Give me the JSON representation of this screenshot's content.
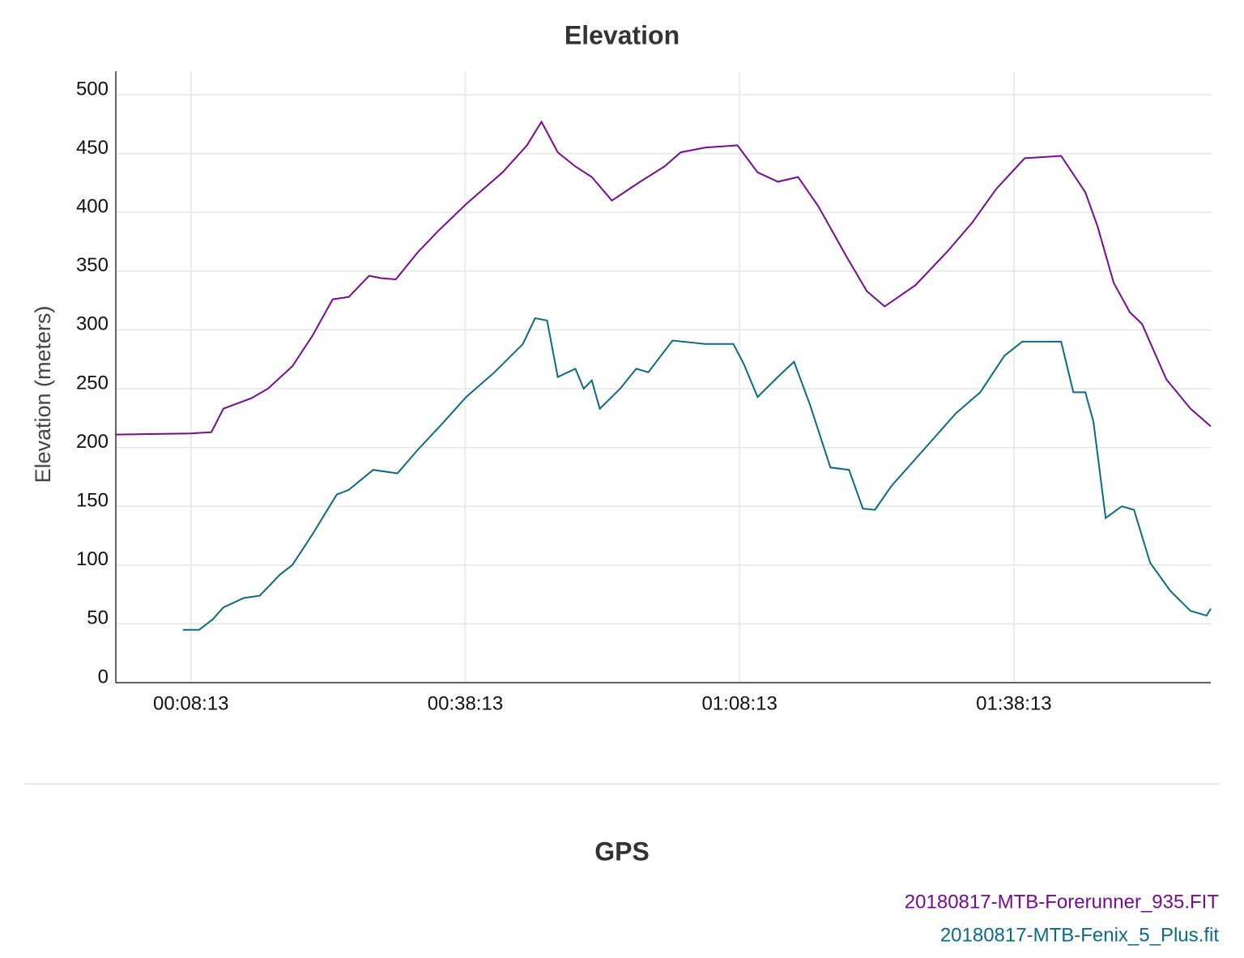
{
  "chart_data": {
    "type": "line",
    "title": "Elevation",
    "y_label": "Elevation (meters)",
    "legend_title": "GPS",
    "legend": "bottom-right",
    "grid": true,
    "xlim": [
      0,
      7185
    ],
    "ylim": [
      0,
      520
    ],
    "xticks": [
      {
        "value": 493,
        "label": "00:08:13"
      },
      {
        "value": 2293,
        "label": "00:38:13"
      },
      {
        "value": 4093,
        "label": "01:08:13"
      },
      {
        "value": 5893,
        "label": "01:38:13"
      }
    ],
    "yticks": [
      0,
      50,
      100,
      150,
      200,
      250,
      300,
      350,
      400,
      450,
      500
    ],
    "series": [
      {
        "name": "20180817-MTB-Forerunner_935.FIT",
        "color": "#770b94",
        "x": [
          0,
          494,
          627,
          706,
          892,
          998,
          1158,
          1290,
          1423,
          1529,
          1662,
          1742,
          1837,
          1981,
          2114,
          2299,
          2538,
          2698,
          2793,
          2900,
          3016,
          3123,
          3255,
          3441,
          3600,
          3707,
          3866,
          4079,
          4211,
          4344,
          4477,
          4610,
          4796,
          4928,
          5045,
          5247,
          5459,
          5618,
          5778,
          5964,
          6203,
          6362,
          6442,
          6548,
          6654,
          6734,
          6893,
          7052,
          7185
        ],
        "values": [
          211,
          212,
          213,
          233,
          242,
          250,
          269,
          295,
          326,
          328,
          346,
          344,
          343,
          366,
          384,
          407,
          434,
          457,
          477,
          451,
          439,
          430,
          410,
          426,
          439,
          451,
          455,
          457,
          434,
          426,
          430,
          405,
          362,
          333,
          320,
          338,
          367,
          391,
          420,
          446,
          448,
          417,
          388,
          340,
          315,
          305,
          258,
          233,
          218
        ]
      },
      {
        "name": "20180817-MTB-Fenix_5_Plus.fit",
        "color": "#0b6b87",
        "x": [
          441,
          547,
          637,
          706,
          839,
          945,
          1078,
          1158,
          1290,
          1450,
          1529,
          1689,
          1848,
          1981,
          2140,
          2299,
          2485,
          2671,
          2751,
          2830,
          2900,
          3016,
          3070,
          3123,
          3176,
          3309,
          3415,
          3494,
          3653,
          3866,
          4052,
          4121,
          4211,
          4344,
          4450,
          4556,
          4689,
          4811,
          4902,
          4981,
          5088,
          5300,
          5512,
          5672,
          5831,
          5948,
          6203,
          6283,
          6362,
          6415,
          6495,
          6601,
          6681,
          6787,
          6920,
          7052,
          7158,
          7185
        ],
        "values": [
          45,
          45,
          54,
          64,
          72,
          74,
          92,
          100,
          126,
          160,
          164,
          181,
          178,
          198,
          220,
          243,
          264,
          288,
          310,
          308,
          260,
          267,
          250,
          257,
          233,
          250,
          267,
          264,
          291,
          288,
          288,
          271,
          243,
          260,
          273,
          236,
          183,
          181,
          148,
          147,
          167,
          198,
          229,
          247,
          278,
          290,
          290,
          247,
          247,
          222,
          140,
          150,
          147,
          102,
          78,
          61,
          57,
          63
        ]
      }
    ]
  }
}
